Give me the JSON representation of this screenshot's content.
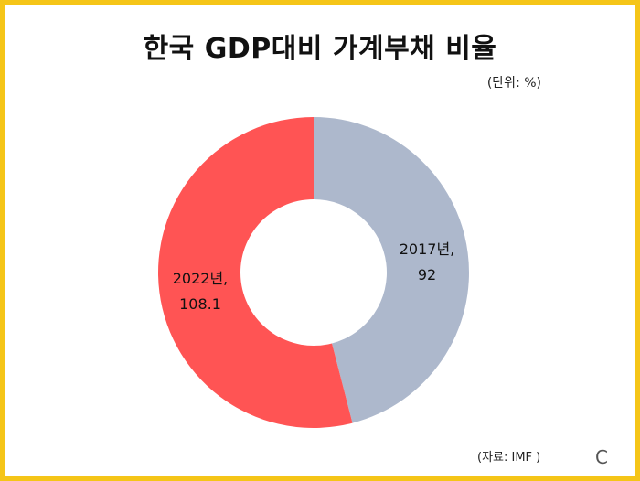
{
  "title": "한국 GDP대비 가계부채 비율",
  "unit_label": "(단위: %)",
  "source_label": "(자료: IMF )",
  "logo_text": "C",
  "colors": {
    "frame": "#f5c518",
    "slice_2017": "#adb8cc",
    "slice_2022": "#ff5454"
  },
  "chart_data": {
    "type": "pie",
    "variant": "donut",
    "title": "한국 GDP대비 가계부채 비율",
    "unit": "%",
    "slices": [
      {
        "name": "2017년",
        "value": 92,
        "label_line1": "2017년,",
        "label_line2": "92",
        "color": "#adb8cc"
      },
      {
        "name": "2022년",
        "value": 108.1,
        "label_line1": "2022년,",
        "label_line2": "108.1",
        "color": "#ff5454"
      }
    ],
    "start_angle": "12 o'clock",
    "direction": "clockwise",
    "legend": "none"
  }
}
